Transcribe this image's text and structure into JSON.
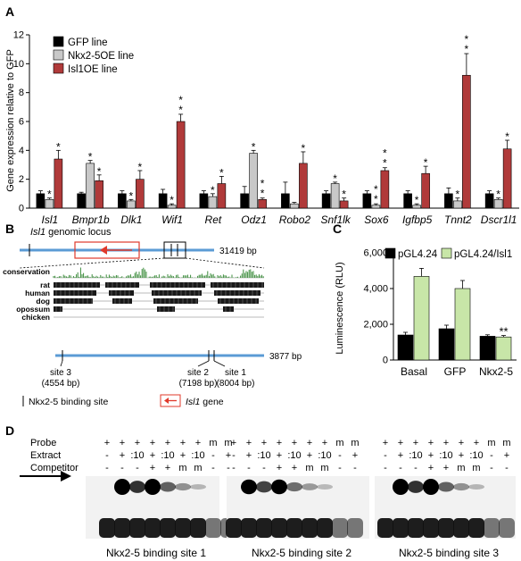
{
  "panels": {
    "A": "A",
    "B": "B",
    "C": "C",
    "D": "D"
  },
  "colors": {
    "black": "#000000",
    "gray": "#c8c8c8",
    "red": "#b03a3a",
    "green": "#c8e6a8",
    "line_blue": "#5b9bd5",
    "gene_red": "#e0392b",
    "conservation_green": "#3c8c3c"
  },
  "panel_b": {
    "locus_title_italic": "Isl1",
    "locus_title_rest": " genomic locus",
    "locus_length": "31419 bp",
    "zoom_length": "3877 bp",
    "track_labels": [
      "conservation",
      "rat",
      "human",
      "dog",
      "opossum",
      "chicken"
    ],
    "sites": [
      {
        "label": "site 3",
        "pos": "(4554 bp)"
      },
      {
        "label": "site 2",
        "pos": "(7198 bp)"
      },
      {
        "label": "site 1",
        "pos": "(8004 bp)"
      }
    ],
    "legend_site": "Nkx2-5 binding site",
    "legend_gene_italic": "Isl1",
    "legend_gene_rest": " gene"
  },
  "panel_d": {
    "row_labels": [
      "Probe",
      "Extract",
      "Competitor"
    ],
    "lanes": [
      [
        "+",
        "-",
        "-"
      ],
      [
        "+",
        "+",
        "-"
      ],
      [
        "+",
        ":10",
        "-"
      ],
      [
        "+",
        "+",
        "+"
      ],
      [
        "+",
        ":10",
        "+"
      ],
      [
        "+",
        "+",
        "m"
      ],
      [
        "+",
        ":10",
        "m"
      ],
      [
        "m",
        "-",
        "-"
      ],
      [
        "m",
        "+",
        "-"
      ]
    ],
    "gel_captions": [
      "Nkx2-5 binding site 1",
      "Nkx2-5 binding site 2",
      "Nkx2-5 binding site 3"
    ],
    "arrow": "shift-arrow"
  },
  "chart_data": [
    {
      "panel": "A",
      "type": "bar",
      "title": "",
      "xlabel": "",
      "ylabel": "Gene expression relative to GFP",
      "ylim": [
        0,
        12
      ],
      "yticks": [
        "0",
        "2",
        "4",
        "6",
        "8",
        "10",
        "12"
      ],
      "grid": false,
      "legend_placement": "top-left",
      "categories": [
        "Isl1",
        "Bmpr1b",
        "Dlk1",
        "Wif1",
        "Ret",
        "Odz1",
        "Robo2",
        "Snf1lk",
        "Sox6",
        "Igfbp5",
        "Tnnt2",
        "Dscr1l1"
      ],
      "series": [
        {
          "name": "GFP line",
          "color": "#000000",
          "values": [
            1,
            1,
            1,
            1,
            1,
            1,
            1,
            1,
            1,
            1,
            1,
            1
          ],
          "errors": [
            0.2,
            0.1,
            0.2,
            0.3,
            0.2,
            0.5,
            0.8,
            0.2,
            0.2,
            0.2,
            0.4,
            0.2
          ]
        },
        {
          "name": "Nkx2-5OE line",
          "color": "#c8c8c8",
          "values": [
            0.6,
            3.1,
            0.5,
            0.2,
            0.8,
            3.8,
            0.3,
            1.7,
            0.2,
            0.2,
            0.5,
            0.6
          ],
          "errors": [
            0.1,
            0.2,
            0.1,
            0.1,
            0.2,
            0.2,
            0.1,
            0.1,
            0.1,
            0.1,
            0.2,
            0.1
          ]
        },
        {
          "name": "Isl1OE line",
          "color": "#b03a3a",
          "values": [
            3.4,
            1.9,
            2.0,
            6.0,
            1.7,
            0.6,
            3.1,
            0.5,
            2.6,
            2.4,
            9.2,
            4.1
          ],
          "errors": [
            0.6,
            0.4,
            0.6,
            0.5,
            0.5,
            0.1,
            0.8,
            0.2,
            0.2,
            0.5,
            1.5,
            0.6
          ]
        }
      ],
      "significance": [
        {
          "category": "Isl1",
          "series": "Nkx2-5OE line",
          "label": "*"
        },
        {
          "category": "Isl1",
          "series": "Isl1OE line",
          "label": "*"
        },
        {
          "category": "Bmpr1b",
          "series": "Nkx2-5OE line",
          "label": "*"
        },
        {
          "category": "Bmpr1b",
          "series": "Isl1OE line",
          "label": "*"
        },
        {
          "category": "Dlk1",
          "series": "Nkx2-5OE line",
          "label": "*"
        },
        {
          "category": "Dlk1",
          "series": "Isl1OE line",
          "label": "*"
        },
        {
          "category": "Wif1",
          "series": "Nkx2-5OE line",
          "label": "*"
        },
        {
          "category": "Wif1",
          "series": "Isl1OE line",
          "label": "**"
        },
        {
          "category": "Ret",
          "series": "Nkx2-5OE line",
          "label": "*"
        },
        {
          "category": "Ret",
          "series": "Isl1OE line",
          "label": "*"
        },
        {
          "category": "Odz1",
          "series": "Nkx2-5OE line",
          "label": "*"
        },
        {
          "category": "Odz1",
          "series": "Isl1OE line",
          "label": "**"
        },
        {
          "category": "Robo2",
          "series": "Isl1OE line",
          "label": "*"
        },
        {
          "category": "Snf1lk",
          "series": "Nkx2-5OE line",
          "label": "*"
        },
        {
          "category": "Snf1lk",
          "series": "Isl1OE line",
          "label": "*"
        },
        {
          "category": "Sox6",
          "series": "Nkx2-5OE line",
          "label": "**"
        },
        {
          "category": "Sox6",
          "series": "Isl1OE line",
          "label": "**"
        },
        {
          "category": "Igfbp5",
          "series": "Nkx2-5OE line",
          "label": "*"
        },
        {
          "category": "Igfbp5",
          "series": "Isl1OE line",
          "label": "*"
        },
        {
          "category": "Tnnt2",
          "series": "Nkx2-5OE line",
          "label": "*"
        },
        {
          "category": "Tnnt2",
          "series": "Isl1OE line",
          "label": "**"
        },
        {
          "category": "Dscr1l1",
          "series": "Nkx2-5OE line",
          "label": "*"
        },
        {
          "category": "Dscr1l1",
          "series": "Isl1OE line",
          "label": "*"
        }
      ]
    },
    {
      "panel": "C",
      "type": "bar",
      "title": "",
      "xlabel": "",
      "ylabel": "Luminescence (RLU)",
      "ylim": [
        0,
        6000
      ],
      "yticks": [
        "0",
        "2,000",
        "4,000",
        "6,000"
      ],
      "grid": false,
      "legend_placement": "top",
      "categories": [
        "Basal",
        "GFP",
        "Nkx2-5"
      ],
      "series": [
        {
          "name": "pGL4.24",
          "color": "#000000",
          "values": [
            1400,
            1750,
            1330
          ],
          "errors": [
            150,
            200,
            80
          ]
        },
        {
          "name": "pGL4.24/Isl1",
          "color": "#c8e6a8",
          "values": [
            4680,
            4000,
            1290
          ],
          "errors": [
            450,
            450,
            80
          ]
        }
      ],
      "significance": [
        {
          "category": "Nkx2-5",
          "series": "pGL4.24/Isl1",
          "label": "**"
        }
      ]
    }
  ]
}
